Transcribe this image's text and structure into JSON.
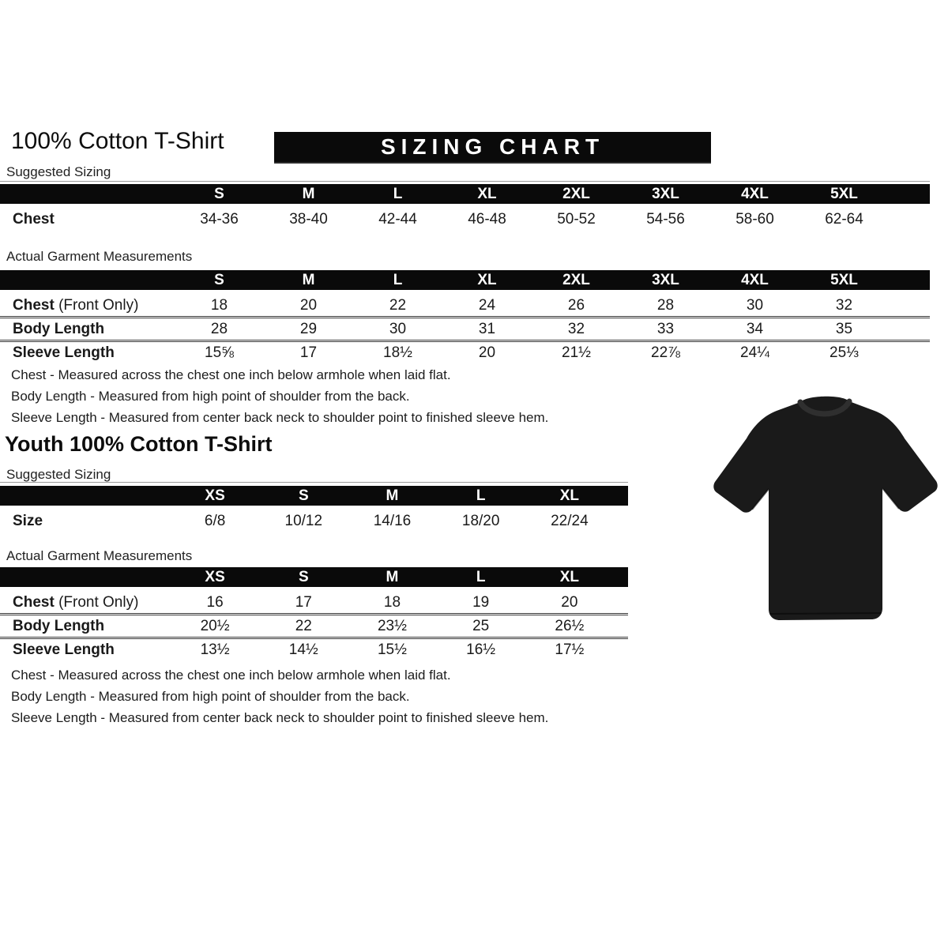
{
  "banner": "SIZING CHART",
  "adult": {
    "title": "100% Cotton T-Shirt",
    "suggested_label": "Suggested Sizing",
    "actual_label": "Actual Garment Measurements"
  },
  "youth": {
    "title": "Youth 100% Cotton T-Shirt",
    "suggested_label": "Suggested Sizing",
    "actual_label": "Actual Garment Measurements"
  },
  "notes": [
    "Chest - Measured across the chest one inch below armhole when laid flat.",
    "Body Length - Measured from high point of shoulder from the back.",
    "Sleeve Length - Measured from center back neck to shoulder point to finished sleeve hem."
  ],
  "tables": {
    "adult_suggested": {
      "columns": [
        "S",
        "M",
        "L",
        "XL",
        "2XL",
        "3XL",
        "4XL",
        "5XL"
      ],
      "rows": [
        {
          "label": "Chest",
          "suffix": "",
          "values": [
            "34-36",
            "38-40",
            "42-44",
            "46-48",
            "50-52",
            "54-56",
            "58-60",
            "62-64"
          ]
        }
      ]
    },
    "adult_actual": {
      "columns": [
        "S",
        "M",
        "L",
        "XL",
        "2XL",
        "3XL",
        "4XL",
        "5XL"
      ],
      "rows": [
        {
          "label": "Chest",
          "suffix": "(Front Only)",
          "values": [
            "18",
            "20",
            "22",
            "24",
            "26",
            "28",
            "30",
            "32"
          ]
        },
        {
          "label": "Body Length",
          "suffix": "",
          "values": [
            "28",
            "29",
            "30",
            "31",
            "32",
            "33",
            "34",
            "35"
          ]
        },
        {
          "label": "Sleeve Length",
          "suffix": "",
          "values": [
            "15⅝",
            "17",
            "18½",
            "20",
            "21½",
            "22⅞",
            "24¼",
            "25⅓"
          ]
        }
      ]
    },
    "youth_suggested": {
      "columns": [
        "XS",
        "S",
        "M",
        "L",
        "XL"
      ],
      "rows": [
        {
          "label": "Size",
          "suffix": "",
          "values": [
            "6/8",
            "10/12",
            "14/16",
            "18/20",
            "22/24"
          ]
        }
      ]
    },
    "youth_actual": {
      "columns": [
        "XS",
        "S",
        "M",
        "L",
        "XL"
      ],
      "rows": [
        {
          "label": "Chest",
          "suffix": "(Front Only)",
          "values": [
            "16",
            "17",
            "18",
            "19",
            "20"
          ]
        },
        {
          "label": "Body Length",
          "suffix": "",
          "values": [
            "20½",
            "22",
            "23½",
            "25",
            "26½"
          ]
        },
        {
          "label": "Sleeve Length",
          "suffix": "",
          "values": [
            "13½",
            "14½",
            "15½",
            "16½",
            "17½"
          ]
        }
      ]
    }
  },
  "tshirt": {
    "color": "#1a1a1a",
    "description": "black short-sleeve t-shirt"
  }
}
